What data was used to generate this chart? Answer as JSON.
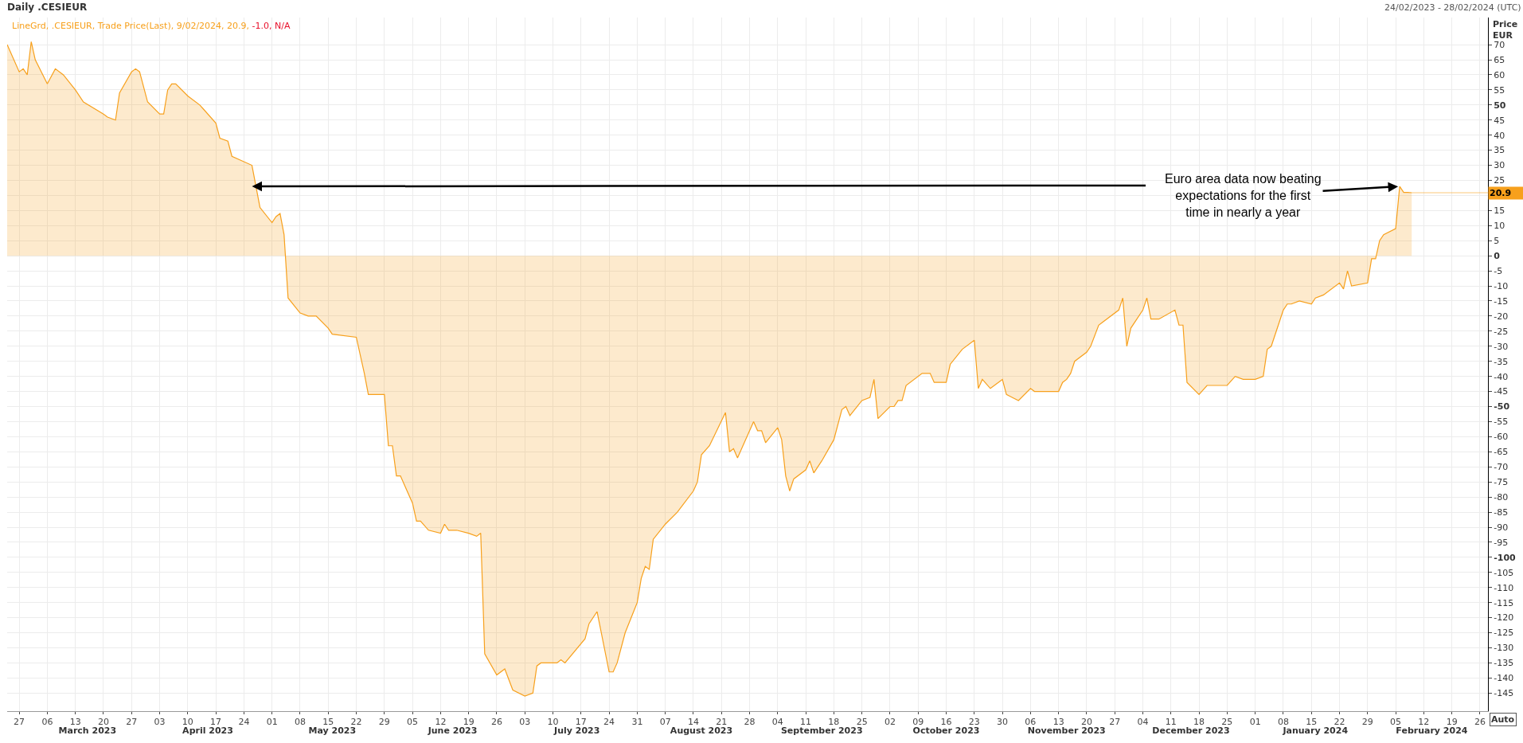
{
  "chart_data": {
    "type": "area",
    "title": "Daily .CESIEUR",
    "subtitle": "24/02/2023 - 28/02/2024 (UTC)",
    "ylabel": "Price\nEUR",
    "series": [
      {
        "name": "LineGrd, .CESIEUR, Trade Price(Last), 9/02/2024, 20.9, -1.0, N/A",
        "color": "#f7a01c",
        "x": [
          "2023-02-24",
          "2023-02-27",
          "2023-02-28",
          "2023-03-01",
          "2023-03-02",
          "2023-03-03",
          "2023-03-06",
          "2023-03-08",
          "2023-03-10",
          "2023-03-13",
          "2023-03-15",
          "2023-03-20",
          "2023-03-21",
          "2023-03-23",
          "2023-03-24",
          "2023-03-27",
          "2023-03-28",
          "2023-03-29",
          "2023-03-31",
          "2023-04-03",
          "2023-04-04",
          "2023-04-05",
          "2023-04-06",
          "2023-04-07",
          "2023-04-10",
          "2023-04-13",
          "2023-04-17",
          "2023-04-18",
          "2023-04-20",
          "2023-04-21",
          "2023-04-26",
          "2023-04-28",
          "2023-05-01",
          "2023-05-02",
          "2023-05-03",
          "2023-05-04",
          "2023-05-05",
          "2023-05-08",
          "2023-05-10",
          "2023-05-12",
          "2023-05-15",
          "2023-05-16",
          "2023-05-22",
          "2023-05-24",
          "2023-05-25",
          "2023-05-29",
          "2023-05-30",
          "2023-05-31",
          "2023-06-01",
          "2023-06-02",
          "2023-06-05",
          "2023-06-06",
          "2023-06-07",
          "2023-06-09",
          "2023-06-12",
          "2023-06-13",
          "2023-06-14",
          "2023-06-16",
          "2023-06-19",
          "2023-06-21",
          "2023-06-22",
          "2023-06-23",
          "2023-06-26",
          "2023-06-28",
          "2023-06-30",
          "2023-07-03",
          "2023-07-05",
          "2023-07-06",
          "2023-07-07",
          "2023-07-11",
          "2023-07-12",
          "2023-07-13",
          "2023-07-18",
          "2023-07-19",
          "2023-07-21",
          "2023-07-24",
          "2023-07-25",
          "2023-07-26",
          "2023-07-28",
          "2023-07-31",
          "2023-08-01",
          "2023-08-02",
          "2023-08-03",
          "2023-08-04",
          "2023-08-07",
          "2023-08-10",
          "2023-08-14",
          "2023-08-15",
          "2023-08-16",
          "2023-08-18",
          "2023-08-22",
          "2023-08-23",
          "2023-08-24",
          "2023-08-25",
          "2023-08-29",
          "2023-08-30",
          "2023-08-31",
          "2023-09-01",
          "2023-09-04",
          "2023-09-05",
          "2023-09-06",
          "2023-09-07",
          "2023-09-08",
          "2023-09-11",
          "2023-09-12",
          "2023-09-13",
          "2023-09-15",
          "2023-09-18",
          "2023-09-20",
          "2023-09-21",
          "2023-09-22",
          "2023-09-25",
          "2023-09-27",
          "2023-09-28",
          "2023-09-29",
          "2023-10-02",
          "2023-10-03",
          "2023-10-04",
          "2023-10-05",
          "2023-10-06",
          "2023-10-10",
          "2023-10-12",
          "2023-10-13",
          "2023-10-16",
          "2023-10-17",
          "2023-10-20",
          "2023-10-23",
          "2023-10-24",
          "2023-10-25",
          "2023-10-27",
          "2023-10-30",
          "2023-10-31",
          "2023-11-03",
          "2023-11-06",
          "2023-11-07",
          "2023-11-10",
          "2023-11-13",
          "2023-11-14",
          "2023-11-15",
          "2023-11-16",
          "2023-11-17",
          "2023-11-20",
          "2023-11-21",
          "2023-11-23",
          "2023-11-24",
          "2023-11-28",
          "2023-11-29",
          "2023-11-30",
          "2023-12-01",
          "2023-12-04",
          "2023-12-05",
          "2023-12-06",
          "2023-12-08",
          "2023-12-12",
          "2023-12-13",
          "2023-12-14",
          "2023-12-15",
          "2023-12-18",
          "2023-12-20",
          "2023-12-25",
          "2023-12-27",
          "2023-12-29",
          "2024-01-01",
          "2024-01-03",
          "2024-01-04",
          "2024-01-05",
          "2024-01-08",
          "2024-01-09",
          "2024-01-10",
          "2024-01-12",
          "2024-01-15",
          "2024-01-16",
          "2024-01-18",
          "2024-01-22",
          "2024-01-23",
          "2024-01-24",
          "2024-01-25",
          "2024-01-29",
          "2024-01-30",
          "2024-01-31",
          "2024-02-01",
          "2024-02-02",
          "2024-02-05",
          "2024-02-06",
          "2024-02-07",
          "2024-02-08",
          "2024-02-09"
        ],
        "values": [
          70,
          61,
          62,
          60,
          71,
          65,
          57,
          62,
          60,
          55,
          51,
          47,
          46,
          45,
          54,
          61,
          62,
          61,
          51,
          47,
          47,
          55,
          57,
          57,
          53,
          50,
          44,
          39,
          38,
          33,
          30,
          16,
          11,
          13,
          14,
          7,
          -14,
          -19,
          -20,
          -20,
          -24,
          -26,
          -27,
          -39,
          -46,
          -46,
          -63,
          -63,
          -73,
          -73,
          -82,
          -88,
          -88,
          -91,
          -92,
          -89,
          -91,
          -91,
          -92,
          -93,
          -92,
          -132,
          -139,
          -137,
          -144,
          -146,
          -145,
          -136,
          -135,
          -135,
          -134,
          -135,
          -127,
          -122,
          -118,
          -138,
          -138,
          -135,
          -125,
          -115,
          -107,
          -103,
          -104,
          -94,
          -89,
          -85,
          -78,
          -75,
          -66,
          -63,
          -52,
          -65,
          -64,
          -67,
          -55,
          -58,
          -58,
          -62,
          -57,
          -61,
          -73,
          -78,
          -74,
          -71,
          -68,
          -72,
          -68,
          -61,
          -51,
          -50,
          -53,
          -48,
          -47,
          -41,
          -54,
          -50,
          -50,
          -48,
          -48,
          -43,
          -39,
          -39,
          -42,
          -42,
          -36,
          -31,
          -28,
          -44,
          -41,
          -44,
          -41,
          -46,
          -48,
          -44,
          -45,
          -45,
          -45,
          -42,
          -41,
          -39,
          -35,
          -32,
          -30,
          -23,
          -22,
          -18,
          -14,
          -30,
          -24,
          -18,
          -14,
          -21,
          -21,
          -18,
          -23,
          -23,
          -42,
          -46,
          -43,
          -43,
          -40,
          -41,
          -41,
          -40,
          -31,
          -30,
          -18,
          -16,
          -16,
          -15,
          -16,
          -14,
          -13,
          -9,
          -11,
          -5,
          -10,
          -9,
          -1,
          -1,
          5,
          7,
          9,
          23,
          21,
          21,
          20.9
        ],
        "value_labels": [
          null,
          null,
          null,
          null,
          null,
          null,
          null,
          null,
          null,
          null,
          null,
          null,
          null,
          null,
          null,
          null,
          null,
          null,
          null,
          null,
          null,
          null,
          null,
          null,
          null,
          null,
          null,
          null,
          null,
          null,
          null,
          null,
          null,
          null,
          null,
          null,
          null,
          null,
          null,
          null,
          null,
          null,
          null,
          null,
          null,
          null,
          null,
          null,
          null,
          null,
          null,
          null,
          null,
          null,
          null,
          null,
          null,
          null,
          null,
          null,
          null,
          null,
          null,
          null,
          null,
          null,
          null,
          null,
          null,
          null,
          null,
          null,
          null,
          null,
          null,
          null,
          null,
          null,
          null,
          null,
          null,
          null,
          null,
          null,
          null,
          null,
          null,
          null,
          null,
          null,
          null,
          null,
          null,
          null,
          null,
          null,
          null,
          null,
          null,
          null,
          null,
          null,
          null,
          null,
          null,
          null,
          null,
          null,
          null,
          null,
          null,
          null,
          null,
          null,
          null,
          null,
          null,
          null,
          null,
          null,
          null,
          null,
          null,
          null,
          null,
          null,
          null,
          null,
          null,
          null,
          null,
          null,
          null,
          null,
          null,
          null,
          null,
          null,
          null,
          null,
          null,
          null,
          null,
          null,
          null,
          null,
          null,
          null,
          null,
          null,
          null,
          null,
          null,
          null,
          null,
          null,
          null,
          null,
          null,
          null,
          null,
          null,
          null,
          null,
          null,
          null,
          null,
          null,
          null,
          null,
          null,
          null,
          null,
          null,
          null,
          null,
          null,
          null,
          null,
          null,
          null,
          null,
          null,
          null,
          null,
          null,
          "20.9"
        ]
      }
    ],
    "xlim": [
      "2023-02-24",
      "2024-02-28"
    ],
    "xticks": [
      {
        "value": "2023-02-27",
        "label": "27"
      },
      {
        "value": "2023-03-06",
        "label": "06"
      },
      {
        "value": "2023-03-13",
        "label": "13"
      },
      {
        "value": "2023-03-20",
        "label": "20"
      },
      {
        "value": "2023-03-27",
        "label": "27"
      },
      {
        "value": "2023-04-03",
        "label": "03"
      },
      {
        "value": "2023-04-10",
        "label": "10"
      },
      {
        "value": "2023-04-17",
        "label": "17"
      },
      {
        "value": "2023-04-24",
        "label": "24"
      },
      {
        "value": "2023-05-01",
        "label": "01"
      },
      {
        "value": "2023-05-08",
        "label": "08"
      },
      {
        "value": "2023-05-15",
        "label": "15"
      },
      {
        "value": "2023-05-22",
        "label": "22"
      },
      {
        "value": "2023-05-29",
        "label": "29"
      },
      {
        "value": "2023-06-05",
        "label": "05"
      },
      {
        "value": "2023-06-12",
        "label": "12"
      },
      {
        "value": "2023-06-19",
        "label": "19"
      },
      {
        "value": "2023-06-26",
        "label": "26"
      },
      {
        "value": "2023-07-03",
        "label": "03"
      },
      {
        "value": "2023-07-10",
        "label": "10"
      },
      {
        "value": "2023-07-17",
        "label": "17"
      },
      {
        "value": "2023-07-24",
        "label": "24"
      },
      {
        "value": "2023-07-31",
        "label": "31"
      },
      {
        "value": "2023-08-07",
        "label": "07"
      },
      {
        "value": "2023-08-14",
        "label": "14"
      },
      {
        "value": "2023-08-21",
        "label": "21"
      },
      {
        "value": "2023-08-28",
        "label": "28"
      },
      {
        "value": "2023-09-04",
        "label": "04"
      },
      {
        "value": "2023-09-11",
        "label": "11"
      },
      {
        "value": "2023-09-18",
        "label": "18"
      },
      {
        "value": "2023-09-25",
        "label": "25"
      },
      {
        "value": "2023-10-02",
        "label": "02"
      },
      {
        "value": "2023-10-09",
        "label": "09"
      },
      {
        "value": "2023-10-16",
        "label": "16"
      },
      {
        "value": "2023-10-23",
        "label": "23"
      },
      {
        "value": "2023-10-30",
        "label": "30"
      },
      {
        "value": "2023-11-06",
        "label": "06"
      },
      {
        "value": "2023-11-13",
        "label": "13"
      },
      {
        "value": "2023-11-20",
        "label": "20"
      },
      {
        "value": "2023-11-27",
        "label": "27"
      },
      {
        "value": "2023-12-04",
        "label": "04"
      },
      {
        "value": "2023-12-11",
        "label": "11"
      },
      {
        "value": "2023-12-18",
        "label": "18"
      },
      {
        "value": "2023-12-25",
        "label": "25"
      },
      {
        "value": "2024-01-01",
        "label": "01"
      },
      {
        "value": "2024-01-08",
        "label": "08"
      },
      {
        "value": "2024-01-15",
        "label": "15"
      },
      {
        "value": "2024-01-22",
        "label": "22"
      },
      {
        "value": "2024-01-29",
        "label": "29"
      },
      {
        "value": "2024-02-05",
        "label": "05"
      },
      {
        "value": "2024-02-12",
        "label": "12"
      },
      {
        "value": "2024-02-19",
        "label": "19"
      },
      {
        "value": "2024-02-26",
        "label": "26"
      }
    ],
    "x2lim": [
      "2023-02-24",
      "2024-02-28"
    ],
    "x2ticks": [
      {
        "value": "2023-03-16",
        "label": "March 2023"
      },
      {
        "value": "2023-04-15",
        "label": "April 2023"
      },
      {
        "value": "2023-05-16",
        "label": "May 2023"
      },
      {
        "value": "2023-06-15",
        "label": "June 2023"
      },
      {
        "value": "2023-07-16",
        "label": "July 2023"
      },
      {
        "value": "2023-08-16",
        "label": "August 2023"
      },
      {
        "value": "2023-09-15",
        "label": "September 2023"
      },
      {
        "value": "2023-10-16",
        "label": "October 2023"
      },
      {
        "value": "2023-11-15",
        "label": "November 2023"
      },
      {
        "value": "2023-12-16",
        "label": "December 2023"
      },
      {
        "value": "2024-01-16",
        "label": "January 2024"
      },
      {
        "value": "2024-02-14",
        "label": "February 2024"
      }
    ],
    "ylim": [
      -151,
      79
    ],
    "yticks": [
      -145,
      -140,
      -135,
      -130,
      -125,
      -120,
      -115,
      -110,
      -105,
      -100,
      -95,
      -90,
      -85,
      -80,
      -75,
      -70,
      -65,
      -60,
      -55,
      -50,
      -45,
      -40,
      -35,
      -30,
      -25,
      -20,
      -15,
      -10,
      -5,
      0,
      5,
      10,
      15,
      {
        "value": 20,
        "label": null
      },
      25,
      30,
      35,
      40,
      45,
      50,
      55,
      60,
      65,
      70
    ],
    "grid": true,
    "legend": false,
    "annotations": [
      {
        "text": "Euro area data now beating\nexpectations for the first\ntime in nearly a year",
        "x": "2024-02-06",
        "y": 23
      },
      "Auto"
    ]
  }
}
